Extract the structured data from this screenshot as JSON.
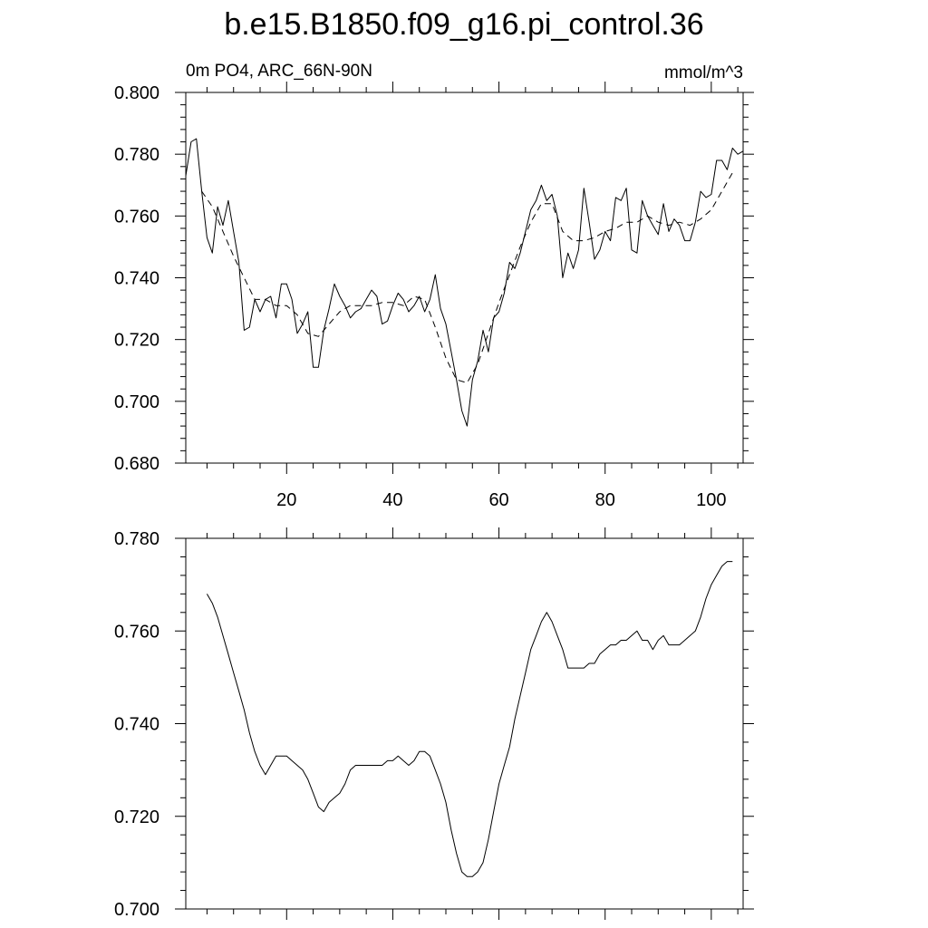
{
  "title": "b.e15.B1850.f09_g16.pi_control.36",
  "subtitle_left": "0m PO4, ARC_66N-90N",
  "subtitle_right": "mmol/m^3",
  "chart_data": [
    {
      "type": "line",
      "panel": "top",
      "xlim": [
        1,
        106
      ],
      "ylim": [
        0.68,
        0.8
      ],
      "x_ticks": [
        20,
        40,
        60,
        80,
        100
      ],
      "x_tick_labels": [
        "20",
        "40",
        "60",
        "80",
        "100"
      ],
      "y_ticks": [
        0.68,
        0.7,
        0.72,
        0.74,
        0.76,
        0.78,
        0.8
      ],
      "y_tick_labels": [
        "0.680",
        "0.700",
        "0.720",
        "0.740",
        "0.760",
        "0.780",
        "0.800"
      ],
      "series": [
        {
          "style": "solid",
          "x": [
            1,
            2,
            3,
            4,
            5,
            6,
            7,
            8,
            9,
            10,
            11,
            12,
            13,
            14,
            15,
            16,
            17,
            18,
            19,
            20,
            21,
            22,
            23,
            24,
            25,
            26,
            27,
            28,
            29,
            30,
            31,
            32,
            33,
            34,
            35,
            36,
            37,
            38,
            39,
            40,
            41,
            42,
            43,
            44,
            45,
            46,
            47,
            48,
            49,
            50,
            51,
            52,
            53,
            54,
            55,
            56,
            57,
            58,
            59,
            60,
            61,
            62,
            63,
            64,
            65,
            66,
            67,
            68,
            69,
            70,
            71,
            72,
            73,
            74,
            75,
            76,
            77,
            78,
            79,
            80,
            81,
            82,
            83,
            84,
            85,
            86,
            87,
            88,
            89,
            90,
            91,
            92,
            93,
            94,
            95,
            96,
            97,
            98,
            99,
            100,
            101,
            102,
            103,
            104,
            105,
            106
          ],
          "values": [
            0.773,
            0.784,
            0.785,
            0.768,
            0.753,
            0.748,
            0.763,
            0.757,
            0.765,
            0.755,
            0.745,
            0.723,
            0.724,
            0.733,
            0.729,
            0.733,
            0.734,
            0.727,
            0.738,
            0.738,
            0.733,
            0.722,
            0.725,
            0.729,
            0.711,
            0.711,
            0.723,
            0.73,
            0.738,
            0.734,
            0.731,
            0.727,
            0.729,
            0.73,
            0.733,
            0.736,
            0.734,
            0.725,
            0.726,
            0.731,
            0.735,
            0.733,
            0.729,
            0.731,
            0.734,
            0.729,
            0.733,
            0.741,
            0.73,
            0.725,
            0.716,
            0.707,
            0.697,
            0.692,
            0.707,
            0.713,
            0.723,
            0.716,
            0.727,
            0.729,
            0.735,
            0.745,
            0.743,
            0.748,
            0.755,
            0.762,
            0.765,
            0.77,
            0.765,
            0.767,
            0.76,
            0.74,
            0.748,
            0.743,
            0.749,
            0.769,
            0.758,
            0.746,
            0.749,
            0.755,
            0.752,
            0.766,
            0.765,
            0.769,
            0.749,
            0.748,
            0.765,
            0.76,
            0.757,
            0.754,
            0.764,
            0.755,
            0.759,
            0.757,
            0.752,
            0.752,
            0.758,
            0.768,
            0.766,
            0.767,
            0.778,
            0.778,
            0.775,
            0.782,
            0.78,
            0.781
          ]
        },
        {
          "style": "dashed",
          "x": [
            4,
            6,
            8,
            10,
            12,
            14,
            16,
            18,
            20,
            22,
            24,
            26,
            28,
            30,
            32,
            34,
            36,
            38,
            40,
            42,
            44,
            46,
            48,
            50,
            52,
            54,
            56,
            58,
            60,
            62,
            64,
            66,
            68,
            70,
            72,
            74,
            76,
            78,
            80,
            82,
            84,
            86,
            88,
            90,
            92,
            94,
            96,
            98,
            100,
            102,
            104
          ],
          "values": [
            0.768,
            0.763,
            0.755,
            0.747,
            0.74,
            0.733,
            0.733,
            0.731,
            0.731,
            0.728,
            0.722,
            0.721,
            0.725,
            0.729,
            0.731,
            0.731,
            0.731,
            0.732,
            0.732,
            0.731,
            0.734,
            0.733,
            0.724,
            0.714,
            0.707,
            0.706,
            0.712,
            0.722,
            0.732,
            0.741,
            0.75,
            0.758,
            0.764,
            0.764,
            0.755,
            0.752,
            0.752,
            0.753,
            0.755,
            0.756,
            0.758,
            0.758,
            0.76,
            0.758,
            0.757,
            0.758,
            0.757,
            0.759,
            0.762,
            0.768,
            0.774
          ]
        }
      ]
    },
    {
      "type": "line",
      "panel": "bottom",
      "xlim": [
        1,
        106
      ],
      "ylim": [
        0.7,
        0.78
      ],
      "x_ticks": [
        20,
        40,
        60,
        80,
        100
      ],
      "y_ticks": [
        0.7,
        0.72,
        0.74,
        0.76,
        0.78
      ],
      "y_tick_labels": [
        "0.700",
        "0.720",
        "0.740",
        "0.760",
        "0.780"
      ],
      "series": [
        {
          "style": "solid",
          "x": [
            5,
            6,
            7,
            8,
            9,
            10,
            11,
            12,
            13,
            14,
            15,
            16,
            17,
            18,
            19,
            20,
            21,
            22,
            23,
            24,
            25,
            26,
            27,
            28,
            29,
            30,
            31,
            32,
            33,
            34,
            35,
            36,
            37,
            38,
            39,
            40,
            41,
            42,
            43,
            44,
            45,
            46,
            47,
            48,
            49,
            50,
            51,
            52,
            53,
            54,
            55,
            56,
            57,
            58,
            59,
            60,
            61,
            62,
            63,
            64,
            65,
            66,
            67,
            68,
            69,
            70,
            71,
            72,
            73,
            74,
            75,
            76,
            77,
            78,
            79,
            80,
            81,
            82,
            83,
            84,
            85,
            86,
            87,
            88,
            89,
            90,
            91,
            92,
            93,
            94,
            95,
            96,
            97,
            98,
            99,
            100,
            101,
            102,
            103,
            104
          ],
          "values": [
            0.768,
            0.766,
            0.763,
            0.759,
            0.755,
            0.751,
            0.747,
            0.743,
            0.738,
            0.734,
            0.731,
            0.729,
            0.731,
            0.733,
            0.733,
            0.733,
            0.732,
            0.731,
            0.73,
            0.728,
            0.725,
            0.722,
            0.721,
            0.723,
            0.724,
            0.725,
            0.727,
            0.73,
            0.731,
            0.731,
            0.731,
            0.731,
            0.731,
            0.731,
            0.732,
            0.732,
            0.733,
            0.732,
            0.731,
            0.732,
            0.734,
            0.734,
            0.733,
            0.73,
            0.727,
            0.723,
            0.717,
            0.712,
            0.708,
            0.707,
            0.707,
            0.708,
            0.71,
            0.715,
            0.721,
            0.727,
            0.731,
            0.735,
            0.741,
            0.746,
            0.751,
            0.756,
            0.759,
            0.762,
            0.764,
            0.762,
            0.759,
            0.756,
            0.752,
            0.752,
            0.752,
            0.752,
            0.753,
            0.753,
            0.755,
            0.756,
            0.757,
            0.757,
            0.758,
            0.758,
            0.759,
            0.76,
            0.758,
            0.758,
            0.756,
            0.758,
            0.759,
            0.757,
            0.757,
            0.757,
            0.758,
            0.759,
            0.76,
            0.763,
            0.767,
            0.77,
            0.772,
            0.774,
            0.775,
            0.775
          ]
        }
      ]
    }
  ]
}
